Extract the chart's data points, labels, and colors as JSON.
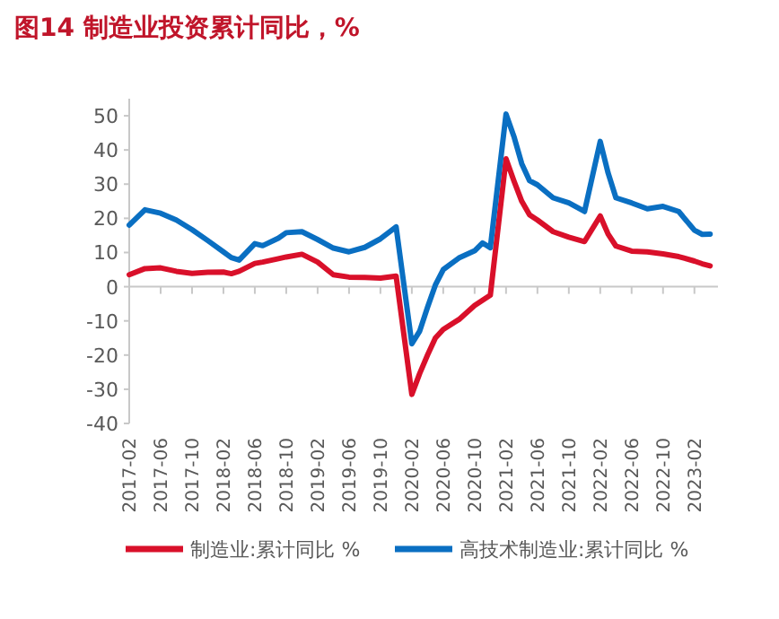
{
  "chart_data": {
    "type": "line",
    "title": "图14  制造业投资累计同比，%",
    "x": [
      "2017-02",
      "2017-04",
      "2017-06",
      "2017-08",
      "2017-10",
      "2017-12",
      "2018-02",
      "2018-03",
      "2018-04",
      "2018-06",
      "2018-07",
      "2018-09",
      "2018-10",
      "2018-12",
      "2019-02",
      "2019-04",
      "2019-06",
      "2019-08",
      "2019-10",
      "2019-12",
      "2020-02",
      "2020-03",
      "2020-04",
      "2020-05",
      "2020-06",
      "2020-08",
      "2020-10",
      "2020-11",
      "2020-12",
      "2021-02",
      "2021-03",
      "2021-04",
      "2021-05",
      "2021-06",
      "2021-08",
      "2021-10",
      "2021-12",
      "2022-02",
      "2022-03",
      "2022-04",
      "2022-06",
      "2022-08",
      "2022-10",
      "2022-12",
      "2023-02",
      "2023-03",
      "2023-04"
    ],
    "series": [
      {
        "name": "制造业:累计同比 %",
        "color": "#d9102a",
        "values": [
          3.5,
          5.3,
          5.5,
          4.5,
          3.9,
          4.2,
          4.3,
          3.8,
          4.5,
          6.8,
          7.2,
          8.2,
          8.7,
          9.5,
          7.2,
          3.5,
          2.8,
          2.7,
          2.5,
          3.1,
          -31.5,
          -25.4,
          -20,
          -15,
          -12.5,
          -9.6,
          -5.5,
          -4,
          -2.5,
          37.4,
          31,
          25,
          21,
          19.5,
          16.1,
          14.5,
          13.2,
          20.7,
          15.4,
          11.9,
          10.4,
          10.2,
          9.6,
          8.8,
          7.5,
          6.7,
          6.1
        ]
      },
      {
        "name": "高技术制造业:累计同比 %",
        "color": "#0a6fc2",
        "values": [
          18,
          22.5,
          21.5,
          19.5,
          16.7,
          13.5,
          10.2,
          8.5,
          7.8,
          12.6,
          12,
          14.2,
          15.8,
          16.1,
          13.8,
          11.3,
          10.2,
          11.5,
          14,
          17.5,
          -16.7,
          -13,
          -6,
          0.5,
          5,
          8.4,
          10.5,
          12.8,
          11.4,
          50.5,
          44,
          36,
          31,
          29.8,
          26,
          24.5,
          22,
          42.5,
          33.3,
          26,
          24.5,
          22.8,
          23.5,
          22,
          16.5,
          15.3,
          15.4
        ]
      }
    ],
    "xlim": [
      "2017-02",
      "2023-05"
    ],
    "xticks": [
      "2017-02",
      "2017-06",
      "2017-10",
      "2018-02",
      "2018-06",
      "2018-10",
      "2019-02",
      "2019-06",
      "2019-10",
      "2020-02",
      "2020-06",
      "2020-10",
      "2021-02",
      "2021-06",
      "2021-10",
      "2022-02",
      "2022-06",
      "2022-10",
      "2023-02"
    ],
    "ylim": [
      -40,
      55
    ],
    "yticks": [
      -40,
      -30,
      -20,
      -10,
      0,
      10,
      20,
      30,
      40,
      50
    ],
    "legend": "bottom"
  }
}
